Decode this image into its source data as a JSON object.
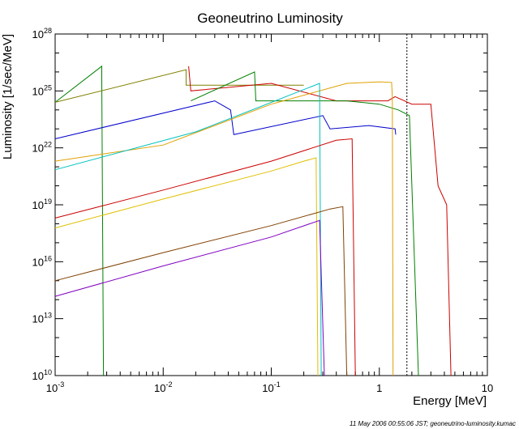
{
  "chart_data": {
    "type": "line",
    "title": "Geoneutrino Luminosity",
    "xlabel": "Energy [MeV]",
    "ylabel": "Luminosity [1/sec/MeV]",
    "x_scale": "log",
    "y_scale": "log",
    "xlim": [
      0.001,
      10
    ],
    "ylim": [
      10000000000.0,
      1e+28
    ],
    "grid": false,
    "x_ticks": [
      {
        "value": 0.001,
        "base": "10",
        "exp": "-3"
      },
      {
        "value": 0.01,
        "base": "10",
        "exp": "-2"
      },
      {
        "value": 0.1,
        "base": "10",
        "exp": "-1"
      },
      {
        "value": 1,
        "base": "1",
        "exp": ""
      },
      {
        "value": 10,
        "base": "10",
        "exp": ""
      }
    ],
    "y_ticks": [
      {
        "value": 10000000000.0,
        "base": "10",
        "exp": "10"
      },
      {
        "value": 10000000000000.0,
        "base": "10",
        "exp": "13"
      },
      {
        "value": 1e+16,
        "base": "10",
        "exp": "16"
      },
      {
        "value": 1e+19,
        "base": "10",
        "exp": "19"
      },
      {
        "value": 1e+22,
        "base": "10",
        "exp": "22"
      },
      {
        "value": 1e+25,
        "base": "10",
        "exp": "25"
      },
      {
        "value": 1e+28,
        "base": "10",
        "exp": "28"
      }
    ],
    "reference_line": {
      "x": 1.8,
      "style": "dotted",
      "color": "#000000"
    },
    "series": [
      {
        "color": "#008000",
        "points": [
          [
            0.001,
            2.5e+24
          ],
          [
            0.0027,
            2e+26
          ],
          [
            0.0027,
            4e+25
          ],
          [
            0.0028,
            10000000000.0
          ]
        ]
      },
      {
        "color": "#808000",
        "points": [
          [
            0.001,
            2.5e+24
          ],
          [
            0.0163,
            1.3e+26
          ],
          [
            0.0163,
            2e+25
          ],
          [
            0.2,
            2e+25
          ]
        ]
      },
      {
        "color": "#cc0000",
        "points": [
          [
            0.0172,
            2e+26
          ],
          [
            0.0172,
            2e+26
          ],
          [
            0.018,
            1e+25
          ],
          [
            0.1,
            2.5e+25
          ],
          [
            0.4,
            3e+24
          ],
          [
            1.2,
            3e+24
          ],
          [
            1.4,
            5e+24
          ],
          [
            2.0,
            2e+24
          ],
          [
            3.0,
            2e+24
          ],
          [
            3.5,
            1e+20
          ],
          [
            4.2,
            1e+19
          ],
          [
            4.6,
            10000000000.0
          ]
        ]
      },
      {
        "color": "#008000",
        "points": [
          [
            0.018,
            3e+24
          ],
          [
            0.07,
            1e+26
          ],
          [
            0.072,
            3e+24
          ],
          [
            0.5,
            3e+24
          ],
          [
            1.0,
            2e+24
          ],
          [
            1.5,
            1e+24
          ],
          [
            1.9,
            5e+23
          ],
          [
            2.3,
            10000000000.0
          ]
        ]
      },
      {
        "color": "#0000cc",
        "points": [
          [
            0.001,
            3e+22
          ],
          [
            0.03,
            3e+24
          ],
          [
            0.042,
            1e+24
          ],
          [
            0.045,
            5e+22
          ],
          [
            0.3,
            5e+23
          ],
          [
            0.35,
            1e+23
          ],
          [
            0.8,
            1.5e+23
          ],
          [
            1.4,
            1e+23
          ],
          [
            1.42,
            5e+22
          ]
        ]
      },
      {
        "color": "#e0a000",
        "points": [
          [
            0.001,
            2e+21
          ],
          [
            0.01,
            1.4e+22
          ],
          [
            0.1,
            2e+24
          ],
          [
            0.5,
            2.5e+25
          ],
          [
            1.0,
            3e+25
          ],
          [
            1.3,
            2.8e+25
          ],
          [
            1.32,
            5e+24
          ],
          [
            1.34,
            10000000000.0
          ]
        ]
      },
      {
        "color": "#00c0c0",
        "points": [
          [
            0.001,
            7e+20
          ],
          [
            0.02,
            7e+22
          ],
          [
            0.08,
            1.5e+24
          ],
          [
            0.28,
            2.5e+25
          ],
          [
            0.29,
            10000000000.0
          ]
        ]
      },
      {
        "color": "#cc0000",
        "points": [
          [
            0.001,
            2e+18
          ],
          [
            0.01,
            6e+19
          ],
          [
            0.1,
            2e+21
          ],
          [
            0.4,
            2.5e+22
          ],
          [
            0.56,
            3e+22
          ],
          [
            0.6,
            10000000000.0
          ]
        ]
      },
      {
        "color": "#e0c000",
        "points": [
          [
            0.001,
            6e+17
          ],
          [
            0.01,
            2e+19
          ],
          [
            0.1,
            6e+20
          ],
          [
            0.2,
            2e+21
          ],
          [
            0.26,
            3e+21
          ],
          [
            0.27,
            10000000000.0
          ]
        ]
      },
      {
        "color": "#804000",
        "points": [
          [
            0.001,
            1000000000000000.0
          ],
          [
            0.01,
            3e+16
          ],
          [
            0.1,
            8e+17
          ],
          [
            0.35,
            6e+18
          ],
          [
            0.46,
            8e+18
          ],
          [
            0.5,
            10000000000.0
          ]
        ]
      },
      {
        "color": "#8000c0",
        "points": [
          [
            0.001,
            150000000000000.0
          ],
          [
            0.01,
            6000000000000000.0
          ],
          [
            0.1,
            2e+17
          ],
          [
            0.28,
            1.5e+18
          ],
          [
            0.31,
            10000000000.0
          ]
        ]
      }
    ]
  },
  "footer": "11 May 2006 00:55:06 JST; geoneutrino-luminosity.kumac"
}
